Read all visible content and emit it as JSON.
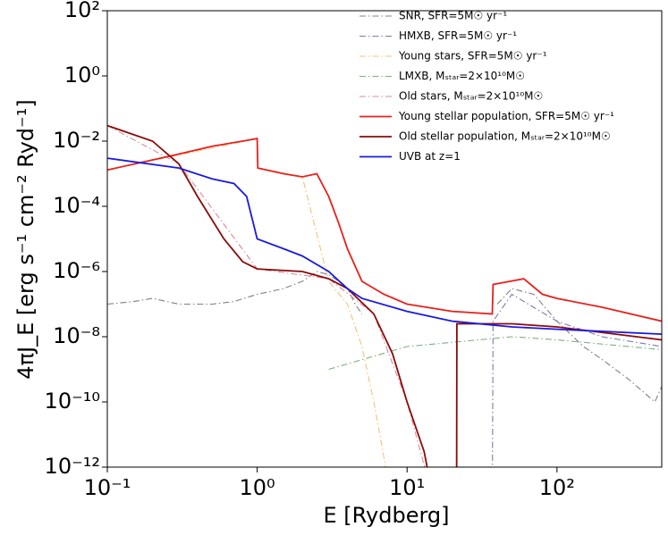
{
  "chart_data": {
    "type": "line",
    "xlabel": "E [Rydberg]",
    "ylabel": "4πJ_E [erg s⁻¹ cm⁻² Ryd⁻¹]",
    "xscale": "log",
    "yscale": "log",
    "xlim": [
      0.1,
      500
    ],
    "ylim": [
      1e-12,
      100
    ],
    "xticks": [
      {
        "value": 0.1,
        "label": "10⁻¹"
      },
      {
        "value": 1,
        "label": "10⁰"
      },
      {
        "value": 10,
        "label": "10¹"
      },
      {
        "value": 100,
        "label": "10²"
      }
    ],
    "yticks": [
      {
        "value": 1e-12,
        "label": "10⁻¹²"
      },
      {
        "value": 1e-10,
        "label": "10⁻¹⁰"
      },
      {
        "value": 1e-08,
        "label": "10⁻⁸"
      },
      {
        "value": 1e-06,
        "label": "10⁻⁶"
      },
      {
        "value": 0.0001,
        "label": "10⁻⁴"
      },
      {
        "value": 0.01,
        "label": "10⁻²"
      },
      {
        "value": 1,
        "label": "10⁰"
      },
      {
        "value": 100,
        "label": "10²"
      }
    ],
    "legend": "upper right",
    "series": [
      {
        "name": "SNR, SFR=5M☉ yr⁻¹",
        "color": "#808080",
        "dash": "dashdot",
        "x": [
          0.1,
          0.15,
          0.2,
          0.3,
          0.5,
          0.7,
          1,
          1.5,
          2,
          2.5,
          3,
          3.5,
          4,
          4.5,
          5,
          20,
          40,
          50,
          70,
          100,
          150,
          200,
          300,
          450,
          500
        ],
        "values": [
          1e-07,
          1.2e-07,
          1.5e-07,
          1e-07,
          1e-07,
          1.2e-07,
          2e-07,
          3e-07,
          5e-07,
          1e-06,
          8e-07,
          5e-07,
          3e-07,
          1e-07,
          5e-08,
          null,
          1e-07,
          3e-07,
          2e-07,
          3e-08,
          5e-09,
          2e-09,
          5e-10,
          1e-10,
          3e-10
        ]
      },
      {
        "name": "HMXB, SFR=5M☉ yr⁻¹",
        "color": "#7a7ab0",
        "dash": "dashdot",
        "x": [
          37,
          37.5,
          50,
          100,
          200,
          500
        ],
        "values": [
          1e-13,
          3e-08,
          2e-07,
          3e-08,
          1e-08,
          5e-09
        ]
      },
      {
        "name": "Young stars, SFR=5M☉ yr⁻¹",
        "color": "#f5c07a",
        "dash": "dashdot",
        "x": [
          0.1,
          1,
          1.01,
          2,
          3,
          4,
          5,
          6,
          7.2
        ],
        "values": [
          0.0013,
          0.012,
          0.0015,
          0.0008,
          5e-07,
          1e-07,
          5e-09,
          1e-10,
          1e-12
        ]
      },
      {
        "name": "LMXB, Mₛₜₐᵣ=2×10¹⁰M☉",
        "color": "#7fb07f",
        "dash": "dashdot",
        "x": [
          3,
          10,
          50,
          100,
          500
        ],
        "values": [
          1e-09,
          5e-09,
          1e-08,
          8e-09,
          4e-09
        ]
      },
      {
        "name": "Old stars, Mₛₜₐᵣ=2×10¹⁰M☉",
        "color": "#d98a9a",
        "dash": "dashdot",
        "x": [
          0.1,
          0.3,
          1,
          3,
          6,
          10,
          15
        ],
        "values": [
          0.03,
          0.002,
          1.2e-06,
          6e-07,
          5e-08,
          1e-10,
          1e-13
        ]
      },
      {
        "name": "Young stellar population, SFR=5M☉ yr⁻¹",
        "color": "#e8201a",
        "dash": "solid",
        "x": [
          0.1,
          0.3,
          0.5,
          0.8,
          1,
          1.01,
          1.5,
          2,
          2.5,
          3,
          3.5,
          4,
          5,
          7,
          10,
          20,
          37,
          37.5,
          60,
          80,
          100,
          200,
          500
        ],
        "values": [
          0.0013,
          0.004,
          0.007,
          0.01,
          0.012,
          0.0015,
          0.001,
          0.0008,
          0.001,
          0.0002,
          3e-05,
          5e-06,
          5e-07,
          2e-07,
          1e-07,
          6e-08,
          5e-08,
          4e-07,
          6e-07,
          2e-07,
          1.5e-07,
          8e-08,
          3e-08
        ]
      },
      {
        "name": "Old stellar population, Mₛₜₐᵣ=2×10¹⁰M☉",
        "color": "#8b0a0a",
        "dash": "solid",
        "x": [
          0.1,
          0.2,
          0.3,
          0.4,
          0.6,
          0.8,
          1,
          2,
          3,
          4,
          6,
          8,
          10,
          13,
          15,
          20,
          21.4,
          21.5,
          50,
          100,
          500
        ],
        "values": [
          0.03,
          0.01,
          0.002,
          0.0002,
          1e-05,
          2e-06,
          1.2e-06,
          1e-06,
          6e-07,
          3e-07,
          5e-08,
          3e-09,
          1e-10,
          3e-12,
          1e-13,
          null,
          1e-13,
          2.5e-08,
          2.5e-08,
          2e-08,
          8e-09
        ]
      },
      {
        "name": "UVB at z=1",
        "color": "#1a1ae0",
        "dash": "solid",
        "x": [
          0.1,
          0.3,
          0.5,
          0.7,
          0.85,
          1,
          1.5,
          2,
          3,
          4,
          5,
          10,
          20,
          50,
          100,
          500
        ],
        "values": [
          0.003,
          0.0015,
          0.0007,
          0.0005,
          0.0002,
          1e-05,
          5e-06,
          3e-06,
          1e-06,
          3e-07,
          1.5e-07,
          6e-08,
          3e-08,
          2e-08,
          1.7e-08,
          1.2e-08
        ]
      }
    ]
  }
}
